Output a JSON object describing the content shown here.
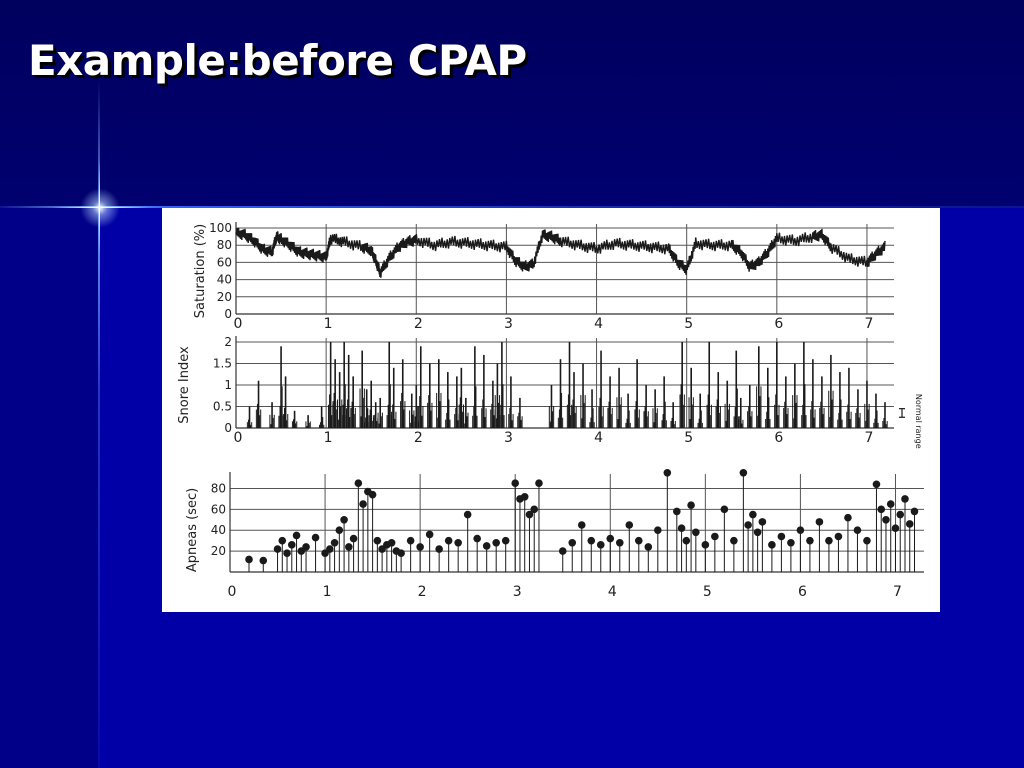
{
  "slide": {
    "title": "Example:before CPAP"
  },
  "colors": {
    "background": "#00007a",
    "title": "#ffffff",
    "trace": "#1a1a1a"
  },
  "chart_data": [
    {
      "type": "line",
      "title": "",
      "xlabel": "",
      "ylabel": "Saturation (%)",
      "xlim": [
        0,
        7.3
      ],
      "ylim": [
        0,
        100
      ],
      "xticks": [
        "0",
        "1",
        "2",
        "3",
        "4",
        "5",
        "6",
        "7"
      ],
      "yticks": [
        "0",
        "20",
        "40",
        "60",
        "80",
        "100"
      ],
      "grid": true,
      "series": [
        {
          "x": [
            0,
            0.1,
            0.2,
            0.3,
            0.4,
            0.45,
            0.5,
            0.6,
            0.7,
            0.8,
            0.9,
            1.0,
            1.05,
            1.2,
            1.4,
            1.5,
            1.55,
            1.6,
            1.7,
            1.8,
            1.9,
            2.0,
            2.2,
            2.4,
            2.6,
            2.8,
            3.0,
            3.1,
            3.2,
            3.3,
            3.4,
            3.5,
            3.6,
            3.8,
            4.0,
            4.2,
            4.4,
            4.6,
            4.8,
            4.9,
            5.0,
            5.1,
            5.3,
            5.5,
            5.6,
            5.7,
            5.8,
            5.9,
            6.0,
            6.2,
            6.4,
            6.5,
            6.6,
            6.8,
            7.0,
            7.1,
            7.2
          ],
          "y": [
            95,
            92,
            85,
            75,
            72,
            90,
            87,
            80,
            72,
            70,
            68,
            66,
            88,
            84,
            78,
            74,
            62,
            48,
            65,
            78,
            84,
            86,
            80,
            84,
            82,
            80,
            78,
            62,
            55,
            58,
            92,
            90,
            85,
            80,
            76,
            82,
            80,
            78,
            76,
            60,
            52,
            82,
            80,
            80,
            72,
            55,
            60,
            72,
            88,
            85,
            90,
            92,
            78,
            64,
            60,
            70,
            78
          ]
        }
      ]
    },
    {
      "type": "bar",
      "title": "",
      "xlabel": "",
      "ylabel": "Snore Index",
      "xlim": [
        0,
        7.3
      ],
      "ylim": [
        0,
        2
      ],
      "xticks": [
        "0",
        "1",
        "2",
        "3",
        "4",
        "5",
        "6",
        "7"
      ],
      "yticks": [
        "0",
        "0.5",
        "1",
        "1.5",
        "2"
      ],
      "grid": true,
      "annotations": [
        "Normal range"
      ],
      "normal_range": [
        0.25,
        0.45
      ],
      "series": [
        {
          "x": [
            0.15,
            0.25,
            0.4,
            0.5,
            0.55,
            0.65,
            0.8,
            0.95,
            1.05,
            1.1,
            1.15,
            1.2,
            1.25,
            1.3,
            1.4,
            1.45,
            1.5,
            1.55,
            1.6,
            1.7,
            1.75,
            1.85,
            1.95,
            2.0,
            2.05,
            2.15,
            2.25,
            2.35,
            2.45,
            2.5,
            2.55,
            2.65,
            2.75,
            2.85,
            2.9,
            2.95,
            3.05,
            3.15,
            3.5,
            3.6,
            3.7,
            3.75,
            3.85,
            3.95,
            4.05,
            4.15,
            4.25,
            4.35,
            4.45,
            4.55,
            4.65,
            4.75,
            4.85,
            4.95,
            5.05,
            5.15,
            5.25,
            5.35,
            5.45,
            5.55,
            5.6,
            5.7,
            5.8,
            5.9,
            6.0,
            6.1,
            6.2,
            6.3,
            6.4,
            6.5,
            6.6,
            6.7,
            6.8,
            6.9,
            7.0,
            7.1,
            7.2
          ],
          "y": [
            0.5,
            1.1,
            0.6,
            1.9,
            1.2,
            0.4,
            0.3,
            0.5,
            2.0,
            1.6,
            1.3,
            2.0,
            1.7,
            1.2,
            1.8,
            0.9,
            1.1,
            0.6,
            0.7,
            2.0,
            1.4,
            1.6,
            0.8,
            1.0,
            1.9,
            1.5,
            1.6,
            1.3,
            1.2,
            1.4,
            0.7,
            1.9,
            1.7,
            1.1,
            1.5,
            2.0,
            1.2,
            0.7,
            1.0,
            1.6,
            2.0,
            1.3,
            1.5,
            0.9,
            1.8,
            1.2,
            1.4,
            0.8,
            1.6,
            1.0,
            0.9,
            1.2,
            0.6,
            2.0,
            1.4,
            0.8,
            2.0,
            1.3,
            1.1,
            1.8,
            0.7,
            1.0,
            1.9,
            1.4,
            2.0,
            1.2,
            1.5,
            2.0,
            1.6,
            1.2,
            1.7,
            1.3,
            1.4,
            0.9,
            1.1,
            0.8,
            0.6
          ]
        }
      ]
    },
    {
      "type": "scatter",
      "title": "",
      "xlabel": "",
      "ylabel": "Apneas (sec)",
      "xlim": [
        0,
        7.3
      ],
      "ylim": [
        0,
        90
      ],
      "xticks": [
        "0",
        "1",
        "2",
        "3",
        "4",
        "5",
        "6",
        "7"
      ],
      "yticks": [
        "20",
        "40",
        "60",
        "80"
      ],
      "grid": true,
      "series": [
        {
          "x": [
            0.2,
            0.35,
            0.5,
            0.55,
            0.6,
            0.65,
            0.7,
            0.75,
            0.8,
            0.9,
            1.0,
            1.05,
            1.1,
            1.15,
            1.2,
            1.25,
            1.3,
            1.35,
            1.4,
            1.45,
            1.5,
            1.55,
            1.6,
            1.65,
            1.7,
            1.75,
            1.8,
            1.9,
            2.0,
            2.1,
            2.2,
            2.3,
            2.4,
            2.5,
            2.6,
            2.7,
            2.8,
            2.9,
            3.0,
            3.05,
            3.1,
            3.15,
            3.2,
            3.25,
            3.5,
            3.6,
            3.7,
            3.8,
            3.9,
            4.0,
            4.1,
            4.2,
            4.3,
            4.4,
            4.5,
            4.6,
            4.7,
            4.75,
            4.8,
            4.85,
            4.9,
            5.0,
            5.1,
            5.2,
            5.3,
            5.4,
            5.45,
            5.5,
            5.55,
            5.6,
            5.7,
            5.8,
            5.9,
            6.0,
            6.1,
            6.2,
            6.3,
            6.4,
            6.5,
            6.6,
            6.7,
            6.8,
            6.85,
            6.9,
            6.95,
            7.0,
            7.05,
            7.1,
            7.15,
            7.2
          ],
          "y": [
            12,
            11,
            22,
            30,
            18,
            26,
            35,
            20,
            24,
            33,
            18,
            22,
            28,
            40,
            50,
            24,
            32,
            85,
            65,
            77,
            74,
            30,
            22,
            26,
            28,
            20,
            18,
            30,
            24,
            36,
            22,
            30,
            28,
            55,
            32,
            25,
            28,
            30,
            85,
            70,
            72,
            55,
            60,
            85,
            20,
            28,
            45,
            30,
            26,
            32,
            28,
            45,
            30,
            24,
            40,
            95,
            58,
            42,
            30,
            64,
            38,
            26,
            34,
            60,
            30,
            95,
            45,
            55,
            38,
            48,
            26,
            34,
            28,
            40,
            30,
            48,
            30,
            34,
            52,
            40,
            30,
            84,
            60,
            50,
            65,
            42,
            55,
            70,
            46,
            58
          ]
        }
      ]
    }
  ]
}
